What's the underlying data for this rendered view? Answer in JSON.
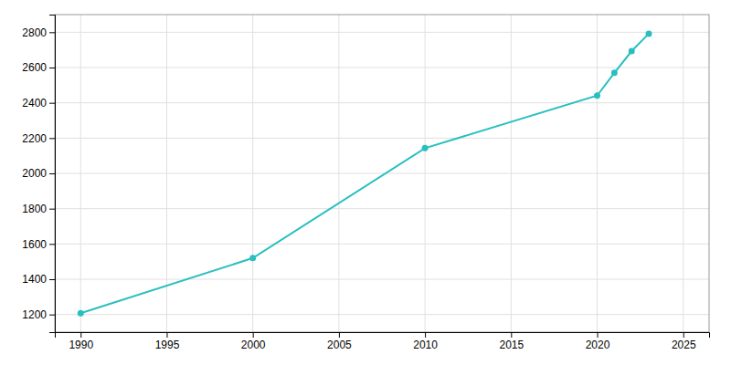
{
  "chart_data": {
    "type": "line",
    "x": [
      1990,
      2000,
      2010,
      2020,
      2021,
      2022,
      2023
    ],
    "values": [
      1207,
      1520,
      2143,
      2441,
      2570,
      2693,
      2792
    ],
    "color": "#2abfbf",
    "marker": "circle",
    "xlim": [
      1988.5,
      2026.5
    ],
    "ylim": [
      1100,
      2900
    ],
    "xticks": [
      1990,
      1995,
      2000,
      2005,
      2010,
      2015,
      2020,
      2025
    ],
    "yticks": [
      1200,
      1400,
      1600,
      1800,
      2000,
      2200,
      2400,
      2600,
      2800
    ],
    "grid": true
  }
}
